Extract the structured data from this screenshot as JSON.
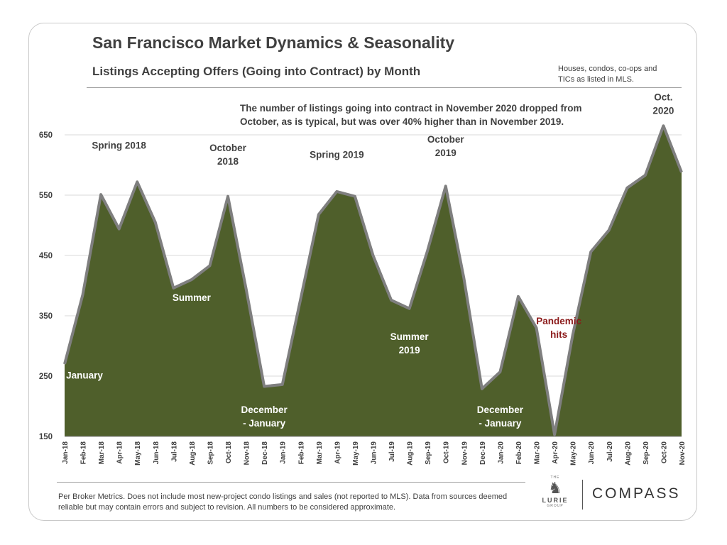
{
  "header": {
    "title": "San Francisco Market Dynamics & Seasonality",
    "subtitle": "Listings Accepting Offers (Going into Contract) by Month",
    "scope_note": "Houses, condos, co-ops and TICs as listed in MLS."
  },
  "summary_note": "The number of listings going into contract in November 2020 dropped from October, as is typical, but was over 40% higher than in November 2019.",
  "footer": {
    "note": "Per Broker Metrics. Does not include most new-project condo listings and sales (not reported to MLS). Data from sources deemed reliable but may contain errors and subject to revision.  All numbers to be considered approximate.",
    "logo_lurie_prefix": "THE",
    "logo_lurie": "LURIE",
    "logo_lurie_suffix": "GROUP",
    "logo_compass": "COMPASS"
  },
  "colors": {
    "area_fill": "#4f5f2b",
    "area_stroke": "#7f7f7f",
    "label_white": "#ffffff",
    "label_dark": "#404040",
    "label_red": "#8b1a1a"
  },
  "chart_data": {
    "type": "area",
    "categories": [
      "Jan-18",
      "Feb-18",
      "Mar-18",
      "Apr-18",
      "May-18",
      "Jun-18",
      "Jul-18",
      "Aug-18",
      "Sep-18",
      "Oct-18",
      "Nov-18",
      "Dec-18",
      "Jan-19",
      "Feb-19",
      "Mar-19",
      "Apr-19",
      "May-19",
      "Jun-19",
      "Jul-19",
      "Aug-19",
      "Sep-19",
      "Oct-19",
      "Nov-19",
      "Dec-19",
      "Jan-20",
      "Feb-20",
      "Mar-20",
      "Apr-20",
      "May-20",
      "Jun-20",
      "Jul-20",
      "Aug-20",
      "Sep-20",
      "Oct-20",
      "Nov-20"
    ],
    "values": [
      270,
      385,
      551,
      494,
      572,
      505,
      396,
      410,
      433,
      548,
      395,
      233,
      236,
      377,
      518,
      556,
      548,
      450,
      376,
      362,
      458,
      565,
      413,
      229,
      257,
      382,
      330,
      153,
      318,
      456,
      492,
      562,
      583,
      665,
      588
    ],
    "ylim": [
      150,
      675
    ],
    "yticks": [
      150,
      250,
      350,
      450,
      550,
      650
    ],
    "grid": true,
    "annotations": [
      {
        "text": "January",
        "month": "Jan-18",
        "value": 246,
        "color": "white"
      },
      {
        "text": "Spring 2018",
        "month": "Apr-18",
        "value": 627,
        "color": "dark"
      },
      {
        "text": "October 2018",
        "month": "Oct-18",
        "value": 623,
        "color": "dark"
      },
      {
        "text": "Summer",
        "month": "Aug-18",
        "value": 375,
        "color": "white"
      },
      {
        "text": "December - January",
        "month": "Dec-18",
        "value": 189,
        "color": "white"
      },
      {
        "text": "Spring 2019",
        "month": "Apr-19",
        "value": 612,
        "color": "dark"
      },
      {
        "text": "October 2019",
        "month": "Oct-19",
        "value": 637,
        "color": "dark"
      },
      {
        "text": "Summer 2019",
        "month": "Aug-19",
        "value": 310,
        "color": "white"
      },
      {
        "text": "December - January",
        "month": "Jan-20",
        "value": 189,
        "color": "white"
      },
      {
        "text": "Pandemic hits",
        "month": "Apr-20",
        "value": 336,
        "color": "red"
      },
      {
        "text": "Oct. 2020",
        "month": "Oct-20",
        "value": 707,
        "color": "dark"
      }
    ]
  }
}
